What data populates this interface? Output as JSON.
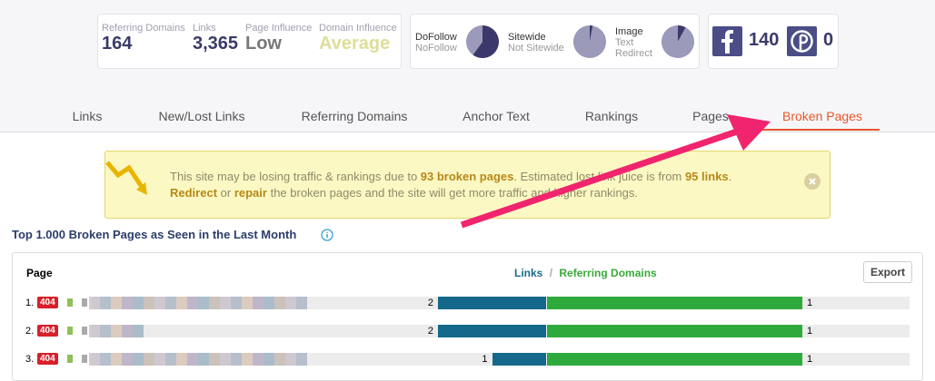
{
  "stats": [
    {
      "label": "Referring Domains",
      "value": "164"
    },
    {
      "label": "Links",
      "value": "3,365"
    },
    {
      "label": "Page Influence",
      "value": "Low"
    },
    {
      "label": "Domain Influence",
      "value": "Average"
    }
  ],
  "pies": [
    {
      "labels": [
        "DoFollow",
        "NoFollow"
      ],
      "values": [
        60,
        40
      ]
    },
    {
      "labels": [
        "Sitewide",
        "Not Sitewide"
      ],
      "values": [
        3,
        97
      ]
    },
    {
      "labels": [
        "Image",
        "Text",
        "Redirect"
      ],
      "values": [
        8,
        92,
        0
      ]
    }
  ],
  "social": {
    "facebook": "140",
    "pinterest": "0"
  },
  "tabs": {
    "items": [
      "Links",
      "New/Lost Links",
      "Referring Domains",
      "Anchor Text",
      "Rankings",
      "Pages",
      "Broken Pages"
    ],
    "active": 6
  },
  "alert": {
    "lines": [
      [
        {
          "text": "This site may be losing traffic & rankings due to ",
          "bold": false
        },
        {
          "text": "93 broken pages",
          "bold": true
        },
        {
          "text": ". Estimated lost link juice is from ",
          "bold": false
        },
        {
          "text": "95 links",
          "bold": true
        },
        {
          "text": ".",
          "bold": false
        }
      ],
      [
        {
          "text": "Redirect",
          "bold": true
        },
        {
          "text": " or ",
          "bold": false
        },
        {
          "text": "repair",
          "bold": true
        },
        {
          "text": " the broken pages and the site will get more traffic and higher rankings.",
          "bold": false
        }
      ]
    ]
  },
  "section": {
    "title": "Top 1.000 Broken Pages as Seen in the Last Month"
  },
  "table": {
    "page_header": "Page",
    "legend": {
      "links": "Links",
      "separator": "/",
      "domains": "Referring Domains"
    },
    "export": "Export",
    "rows": [
      {
        "rank": "1.",
        "status": "404",
        "links": 2,
        "domains": 1
      },
      {
        "rank": "2.",
        "status": "404",
        "links": 2,
        "domains": 1
      },
      {
        "rank": "3.",
        "status": "404",
        "links": 1,
        "domains": 1
      }
    ]
  }
}
